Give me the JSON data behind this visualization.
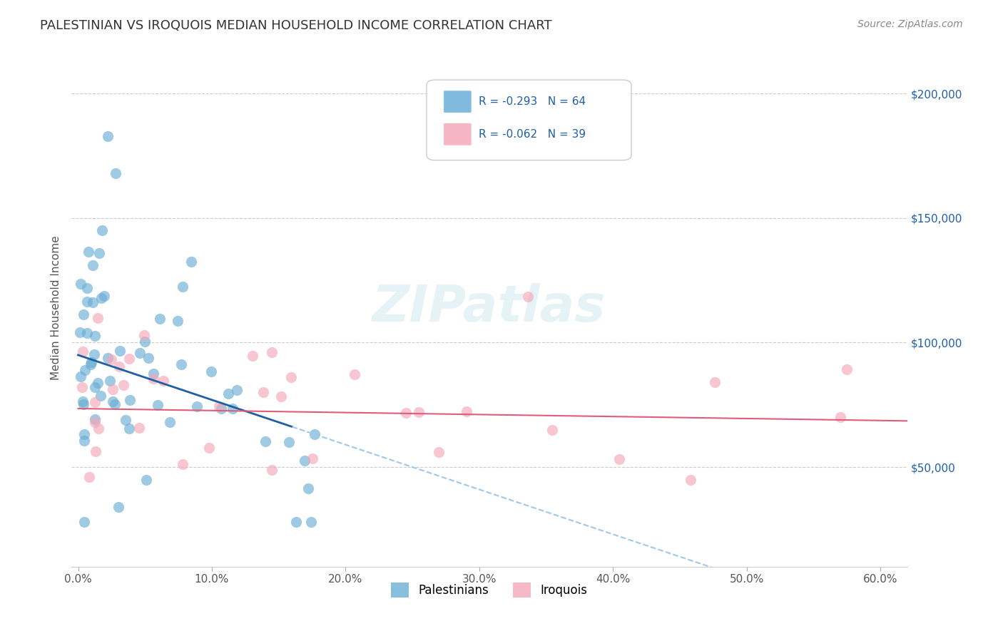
{
  "title": "PALESTINIAN VS IROQUOIS MEDIAN HOUSEHOLD INCOME CORRELATION CHART",
  "source": "Source: ZipAtlas.com",
  "ylabel": "Median Household Income",
  "xlabel_ticks": [
    "0.0%",
    "10.0%",
    "20.0%",
    "30.0%",
    "40.0%",
    "50.0%",
    "60.0%"
  ],
  "xlabel_vals": [
    0.0,
    0.1,
    0.2,
    0.3,
    0.4,
    0.5,
    0.6
  ],
  "ytick_labels": [
    "$50,000",
    "$100,000",
    "$150,000",
    "$200,000"
  ],
  "ytick_vals": [
    50000,
    100000,
    150000,
    200000
  ],
  "xlim": [
    -0.005,
    0.62
  ],
  "ylim": [
    10000,
    218000
  ],
  "watermark": "ZIPatlas",
  "legend_blue_r": "-0.293",
  "legend_blue_n": "64",
  "legend_pink_r": "-0.062",
  "legend_pink_n": "39",
  "legend_blue_label": "Palestinians",
  "legend_pink_label": "Iroquois",
  "blue_color": "#6aaed6",
  "pink_color": "#f4a8b8",
  "blue_line_color": "#1f5fa6",
  "pink_line_color": "#e05c7a",
  "dashed_line_color": "#a0c8e8",
  "slope_blue": -180000,
  "intercept_blue": 95000,
  "slope_pink": -8000,
  "intercept_pink": 73500
}
